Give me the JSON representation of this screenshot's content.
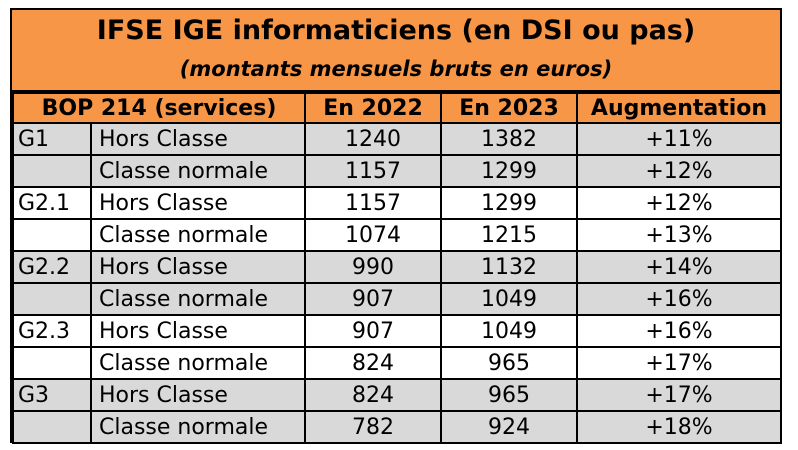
{
  "title": "IFSE IGE informaticiens (en DSI ou pas)",
  "subtitle": "(montants mensuels bruts en euros)",
  "header": {
    "col1": "BOP 214 (services)",
    "col2": "En 2022",
    "col3": "En 2023",
    "col4": "Augmentation"
  },
  "rows": [
    {
      "grade": "G1",
      "label": "Hors Classe",
      "y2022": "1240",
      "y2023": "1382",
      "increase": "+11%"
    },
    {
      "grade": "",
      "label": "Classe normale",
      "y2022": "1157",
      "y2023": "1299",
      "increase": "+12%"
    },
    {
      "grade": "G2.1",
      "label": "Hors Classe",
      "y2022": "1157",
      "y2023": "1299",
      "increase": "+12%"
    },
    {
      "grade": "",
      "label": "Classe normale",
      "y2022": "1074",
      "y2023": "1215",
      "increase": "+13%"
    },
    {
      "grade": "G2.2",
      "label": "Hors Classe",
      "y2022": "990",
      "y2023": "1132",
      "increase": "+14%"
    },
    {
      "grade": "",
      "label": "Classe normale",
      "y2022": "907",
      "y2023": "1049",
      "increase": "+16%"
    },
    {
      "grade": "G2.3",
      "label": "Hors Classe",
      "y2022": "907",
      "y2023": "1049",
      "increase": "+16%"
    },
    {
      "grade": "",
      "label": "Classe normale",
      "y2022": "824",
      "y2023": "965",
      "increase": "+17%"
    },
    {
      "grade": "G3",
      "label": "Hors Classe",
      "y2022": "824",
      "y2023": "965",
      "increase": "+17%"
    },
    {
      "grade": "",
      "label": "Classe normale",
      "y2022": "782",
      "y2023": "924",
      "increase": "+18%"
    }
  ],
  "colors": {
    "header_orange": "#f79646",
    "row_gray": "#d9d9d9",
    "row_white": "#ffffff"
  }
}
